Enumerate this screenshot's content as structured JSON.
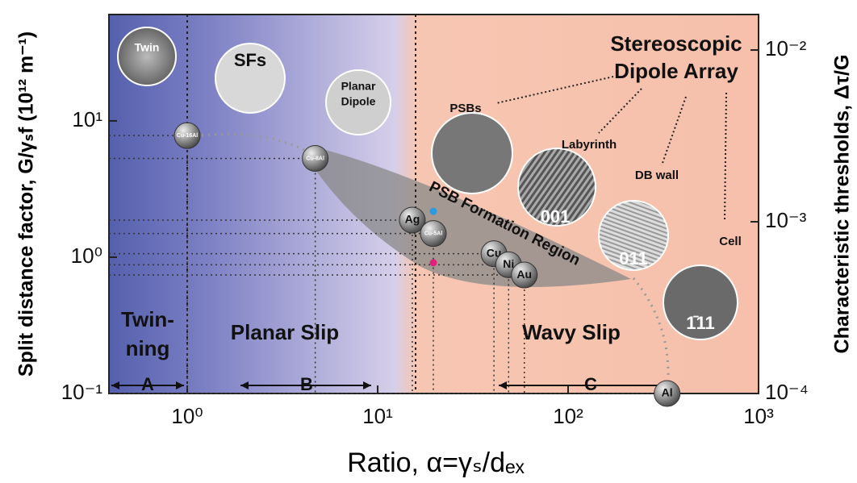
{
  "chart_data": {
    "type": "scatter",
    "x_label": "Ratio, α=γₛ/dₑₓ",
    "y_label": "Split distance factor, G/γₛf (10¹² m⁻¹)",
    "y2_label": "Characteristic thresholds, Δτ/G",
    "xlog": true,
    "ylog": true,
    "xlim": [
      0.388,
      1000
    ],
    "ylim": [
      0.1,
      60.3
    ],
    "y2lim": [
      0.0001,
      0.0161
    ],
    "xticks": [
      {
        "value": 1,
        "label": "10⁰"
      },
      {
        "value": 10,
        "label": "10¹"
      },
      {
        "value": 100,
        "label": "10²"
      },
      {
        "value": 1000,
        "label": "10³"
      }
    ],
    "yticks": [
      {
        "value": 0.1,
        "label": "10⁻¹"
      },
      {
        "value": 1,
        "label": "10⁰"
      },
      {
        "value": 10,
        "label": "10¹"
      }
    ],
    "y2ticks": [
      {
        "value": 0.0001,
        "label": "10⁻⁴"
      },
      {
        "value": 0.001,
        "label": "10⁻³"
      },
      {
        "value": 0.01,
        "label": "10⁻²"
      }
    ],
    "points": {
      "labels": [
        "Cu-16Al",
        "Cu-8Al",
        "Ag",
        "Cu-5Al",
        "Cu",
        "Ni",
        "Au",
        "Al"
      ],
      "x": [
        1.0,
        4.7,
        15.2,
        19.6,
        40.8,
        48.7,
        58.9,
        331
      ],
      "y": [
        7.8,
        5.3,
        1.87,
        1.49,
        1.06,
        0.88,
        0.74,
        0.1
      ]
    },
    "highlights": {
      "x": [
        19.6,
        19.6
      ],
      "y": [
        2.17,
        0.91
      ],
      "colors": [
        "#2a9be0",
        "#e0207a"
      ]
    },
    "annotations": [
      "Twin-",
      "ning",
      "Planar Slip",
      "Wavy Slip",
      "A",
      "B",
      "C",
      "PSB Formation Region",
      "Stereoscopic",
      "Dipole Array",
      "PSBs",
      "Labyrinth",
      "DB wall",
      "Cell",
      "Twin",
      "SFs",
      "Planar",
      "Dipole",
      "001",
      "011",
      "1̄11"
    ]
  }
}
